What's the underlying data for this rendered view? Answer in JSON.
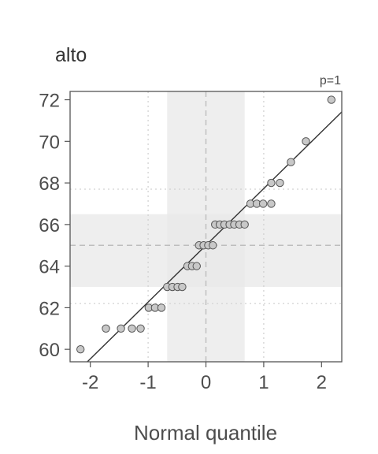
{
  "chart_data": {
    "type": "scatter",
    "title": "alto",
    "annotation": "p=1",
    "xlabel": "Normal quantile",
    "ylabel": "",
    "xlim": [
      -2.35,
      2.35
    ],
    "ylim": [
      59.4,
      72.4
    ],
    "xticks": [
      -2,
      -1,
      0,
      1,
      2
    ],
    "xtick_labels": [
      "-2",
      "-1",
      "0",
      "1",
      "2"
    ],
    "yticks": [
      60,
      62,
      64,
      66,
      68,
      70,
      72
    ],
    "ytick_labels": [
      "60",
      "62",
      "64",
      "66",
      "68",
      "70",
      "72"
    ],
    "grid": false,
    "colors": {
      "points_fill": "#c8c8c8",
      "points_stroke": "#555555",
      "line": "#333333",
      "band": "#e8e8e8",
      "frame": "#555555",
      "reference_dashed": "#bdbdbd",
      "reference_dotted": "#d2d2d2"
    },
    "reference_line": {
      "intercept": 65.0,
      "slope": 2.73
    },
    "x_band": [
      -0.67,
      0.67
    ],
    "y_band": [
      63.0,
      66.5
    ],
    "x_center": 0,
    "y_center": 65,
    "dotted_x": [
      -1,
      1
    ],
    "dotted_y": [
      62.2,
      67.7
    ],
    "points": [
      {
        "x": -2.17,
        "y": 60
      },
      {
        "x": -1.73,
        "y": 61
      },
      {
        "x": -1.47,
        "y": 61
      },
      {
        "x": -1.28,
        "y": 61
      },
      {
        "x": -1.13,
        "y": 61
      },
      {
        "x": -0.99,
        "y": 62
      },
      {
        "x": -0.88,
        "y": 62
      },
      {
        "x": -0.77,
        "y": 62
      },
      {
        "x": -0.67,
        "y": 63
      },
      {
        "x": -0.58,
        "y": 63
      },
      {
        "x": -0.49,
        "y": 63
      },
      {
        "x": -0.41,
        "y": 63
      },
      {
        "x": -0.32,
        "y": 64
      },
      {
        "x": -0.24,
        "y": 64
      },
      {
        "x": -0.16,
        "y": 64
      },
      {
        "x": -0.12,
        "y": 65
      },
      {
        "x": -0.04,
        "y": 65
      },
      {
        "x": 0.04,
        "y": 65
      },
      {
        "x": 0.12,
        "y": 65
      },
      {
        "x": 0.16,
        "y": 66
      },
      {
        "x": 0.24,
        "y": 66
      },
      {
        "x": 0.32,
        "y": 66
      },
      {
        "x": 0.41,
        "y": 66
      },
      {
        "x": 0.49,
        "y": 66
      },
      {
        "x": 0.58,
        "y": 66
      },
      {
        "x": 0.67,
        "y": 66
      },
      {
        "x": 0.77,
        "y": 67
      },
      {
        "x": 0.88,
        "y": 67
      },
      {
        "x": 0.99,
        "y": 67
      },
      {
        "x": 1.13,
        "y": 67
      },
      {
        "x": 1.13,
        "y": 68
      },
      {
        "x": 1.28,
        "y": 68
      },
      {
        "x": 1.47,
        "y": 69
      },
      {
        "x": 1.73,
        "y": 70
      },
      {
        "x": 2.17,
        "y": 72
      }
    ]
  }
}
